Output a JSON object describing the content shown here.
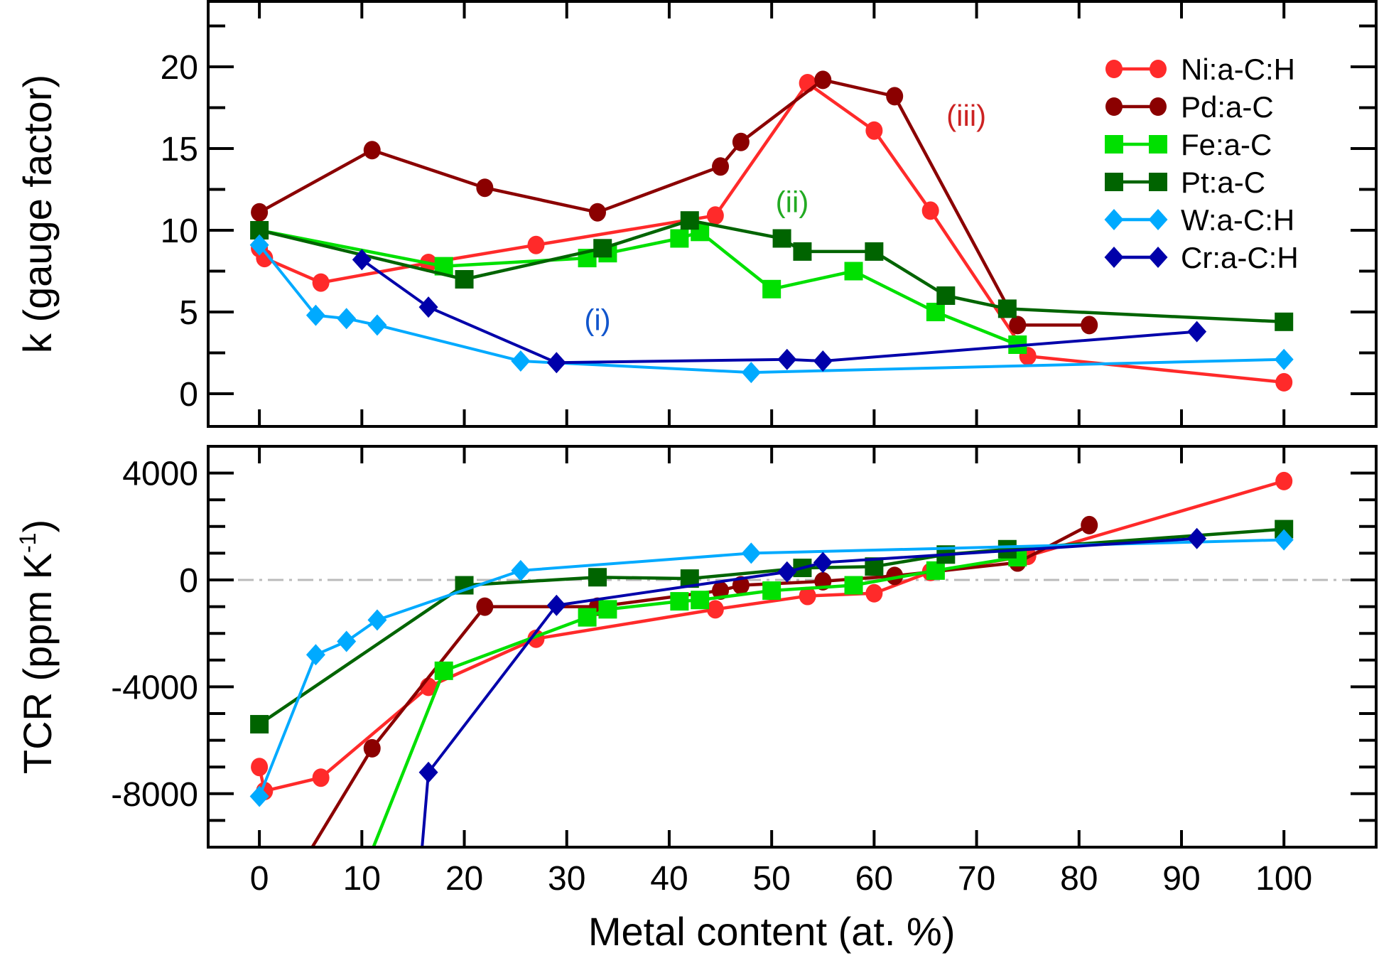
{
  "chart_data": {
    "type": "line",
    "xlabel": "Metal content (at. %)",
    "x_ticks": [
      "0",
      "10",
      "20",
      "30",
      "40",
      "50",
      "60",
      "70",
      "80",
      "90",
      "100"
    ],
    "xlim": [
      -5,
      109
    ],
    "panels": [
      {
        "id": "top",
        "ylabel": "k (gauge factor)",
        "ylim": [
          -2,
          24
        ],
        "y_ticks": [
          "0",
          "5",
          "10",
          "15",
          "20"
        ],
        "y_tick_values": [
          0,
          5,
          10,
          15,
          20
        ],
        "y_minor_step": 2.5,
        "annotations": [
          {
            "text": "(i)",
            "x": 33,
            "y": 3.9,
            "color": "#1155cc"
          },
          {
            "text": "(ii)",
            "x": 52,
            "y": 11.1,
            "color": "#22aa22"
          },
          {
            "text": "(iii)",
            "x": 69,
            "y": 16.4,
            "color": "#cc2222"
          }
        ]
      },
      {
        "id": "bottom",
        "ylabel": "TCR (ppm K",
        "ylabel_sup": "-1",
        "ylabel_close": ")",
        "ylim": [
          -10000,
          5000
        ],
        "y_ticks": [
          "4000",
          "0",
          "-4000",
          "-8000"
        ],
        "y_tick_values": [
          4000,
          0,
          -4000,
          -8000
        ],
        "y_minor_step": 1000,
        "zero_line": true
      }
    ],
    "series": [
      {
        "name": "Ni:a-C:H",
        "color": "#ff2a2a",
        "marker": "circle",
        "k": [
          [
            0,
            8.9
          ],
          [
            0.5,
            8.3
          ],
          [
            6,
            6.8
          ],
          [
            16.5,
            8.0
          ],
          [
            27,
            9.1
          ],
          [
            44.5,
            10.9
          ],
          [
            53.5,
            19.0
          ],
          [
            60,
            16.1
          ],
          [
            65.5,
            11.2
          ],
          [
            75,
            2.3
          ],
          [
            100,
            0.7
          ]
        ],
        "tcr": [
          [
            0,
            -7000
          ],
          [
            0.5,
            -7900
          ],
          [
            6,
            -7400
          ],
          [
            16.5,
            -4000
          ],
          [
            27,
            -2200
          ],
          [
            44.5,
            -1100
          ],
          [
            53.5,
            -600
          ],
          [
            60,
            -500
          ],
          [
            65.5,
            300
          ],
          [
            75,
            900
          ],
          [
            100,
            3700
          ]
        ]
      },
      {
        "name": "Pd:a-C",
        "color": "#8b0000",
        "marker": "circle",
        "k": [
          [
            0,
            11.1
          ],
          [
            11,
            14.9
          ],
          [
            22,
            12.6
          ],
          [
            33,
            11.1
          ],
          [
            45,
            13.9
          ],
          [
            47,
            15.4
          ],
          [
            55,
            19.2
          ],
          [
            62,
            18.2
          ],
          [
            74,
            4.2
          ],
          [
            81,
            4.2
          ]
        ],
        "tcr": [
          [
            2,
            -12000
          ],
          [
            11,
            -6300
          ],
          [
            22,
            -1000
          ],
          [
            33,
            -1000
          ],
          [
            45,
            -400
          ],
          [
            47,
            -200
          ],
          [
            55,
            -50
          ],
          [
            62,
            150
          ],
          [
            74,
            650
          ],
          [
            81,
            2050
          ]
        ],
        "tcr_first_offscale": true
      },
      {
        "name": "Fe:a-C",
        "color": "#00e000",
        "marker": "square",
        "k": [
          [
            0,
            10.0
          ],
          [
            18,
            7.8
          ],
          [
            32,
            8.3
          ],
          [
            34,
            8.6
          ],
          [
            41,
            9.5
          ],
          [
            43,
            9.9
          ],
          [
            50,
            6.4
          ],
          [
            58,
            7.5
          ],
          [
            66,
            5.0
          ],
          [
            74,
            3.0
          ]
        ],
        "tcr": [
          [
            8,
            -13000
          ],
          [
            18,
            -3400
          ],
          [
            32,
            -1400
          ],
          [
            34,
            -1100
          ],
          [
            41,
            -800
          ],
          [
            43,
            -750
          ],
          [
            50,
            -400
          ],
          [
            58,
            -200
          ],
          [
            66,
            350
          ],
          [
            74,
            850
          ]
        ],
        "k_first_hidden": true,
        "tcr_first_offscale": true
      },
      {
        "name": "Pt:a-C",
        "color": "#006400",
        "marker": "square",
        "k": [
          [
            0,
            10.0
          ],
          [
            20,
            7.0
          ],
          [
            33.5,
            8.9
          ],
          [
            42,
            10.6
          ],
          [
            51,
            9.5
          ],
          [
            53,
            8.7
          ],
          [
            60,
            8.7
          ],
          [
            67,
            6.0
          ],
          [
            73,
            5.2
          ],
          [
            100,
            4.4
          ]
        ],
        "tcr": [
          [
            0,
            -5400
          ],
          [
            20,
            -200
          ],
          [
            33,
            100
          ],
          [
            42,
            50
          ],
          [
            53,
            450
          ],
          [
            60,
            500
          ],
          [
            67,
            950
          ],
          [
            73,
            1150
          ],
          [
            100,
            1900
          ]
        ]
      },
      {
        "name": "W:a-C:H",
        "color": "#00aaff",
        "marker": "diamond",
        "k": [
          [
            0,
            9.1
          ],
          [
            5.5,
            4.8
          ],
          [
            8.5,
            4.6
          ],
          [
            11.5,
            4.2
          ],
          [
            25.5,
            2.0
          ],
          [
            48,
            1.3
          ],
          [
            100,
            2.1
          ]
        ],
        "tcr": [
          [
            0,
            -8100
          ],
          [
            5.5,
            -2800
          ],
          [
            8.5,
            -2300
          ],
          [
            11.5,
            -1500
          ],
          [
            25.5,
            350
          ],
          [
            48,
            1000
          ],
          [
            100,
            1500
          ]
        ]
      },
      {
        "name": "Cr:a-C:H",
        "color": "#0000aa",
        "marker": "diamond",
        "k": [
          [
            10,
            8.2
          ],
          [
            16.5,
            5.3
          ],
          [
            29,
            1.9
          ],
          [
            51.5,
            2.1
          ],
          [
            55,
            2.0
          ],
          [
            91.5,
            3.8
          ]
        ],
        "tcr": [
          [
            15,
            -14000
          ],
          [
            16.5,
            -7200
          ],
          [
            29,
            -950
          ],
          [
            51.5,
            300
          ],
          [
            55,
            650
          ],
          [
            91.5,
            1550
          ]
        ],
        "tcr_first_offscale": true
      }
    ],
    "legend": {
      "position": "top-right",
      "panel": "top"
    }
  }
}
